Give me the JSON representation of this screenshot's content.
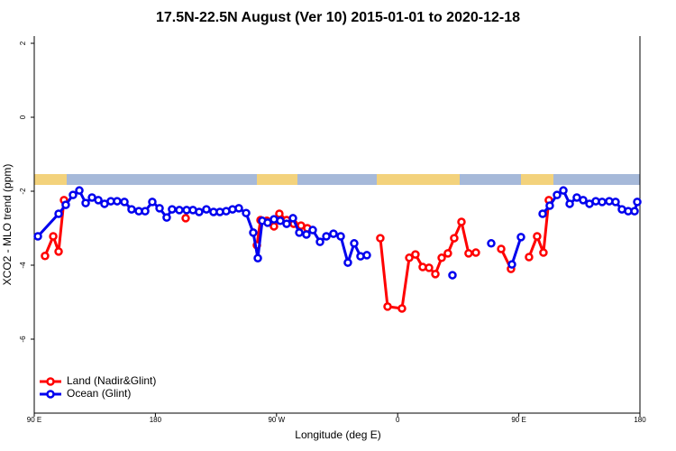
{
  "chart_data": {
    "type": "line",
    "title": "17.5N-22.5N August (Ver 10)   2015-01-01 to 2020-12-18",
    "x_label": "Longitude (deg E)",
    "y_label": "XCO2 - MLO trend (ppm)",
    "xlim": [
      90,
      540
    ],
    "ylim": [
      -8,
      2.2
    ],
    "xticks": [
      {
        "value": 90,
        "label": "90 E"
      },
      180,
      {
        "value": 270,
        "label": "90 W"
      },
      {
        "value": 360,
        "label": "0"
      },
      {
        "value": 450,
        "label": "90 E"
      },
      {
        "value": 540,
        "label": "180"
      }
    ],
    "yticks": [
      2,
      0,
      -2,
      -4,
      -6
    ],
    "legend": "bottom-left",
    "series": [
      {
        "name": "Land (Nadir&Glint)",
        "color": "#ff0000",
        "x": [
          98.0,
          104.1,
          108.1,
          112.1,
          null,
          202.5,
          null,
          255.4,
          258.1,
          262.8,
          268.1,
          272.1,
          277.5,
          282.8,
          288.2,
          292.9,
          null,
          347.1,
          352.5,
          363.2,
          368.6,
          373.2,
          378.6,
          383.3,
          388.0,
          392.7,
          397.3,
          402.0,
          407.4,
          412.7,
          418.1,
          null,
          436.9,
          444.2,
          null,
          457.6,
          463.6,
          468.3,
          472.3
        ],
        "values": [
          -3.75,
          -3.22,
          -3.63,
          -2.24,
          null,
          -2.73,
          null,
          -3.46,
          -2.78,
          -2.8,
          -2.95,
          -2.61,
          -2.78,
          -2.88,
          -2.93,
          -3.0,
          null,
          -3.27,
          -5.12,
          -5.17,
          -3.8,
          -3.71,
          -4.05,
          -4.07,
          -4.24,
          -3.8,
          -3.68,
          -3.27,
          -2.83,
          -3.68,
          -3.66,
          null,
          -3.56,
          -4.1,
          null,
          -3.78,
          -3.22,
          -3.66,
          -2.24
        ]
      },
      {
        "name": "Ocean (Glint)",
        "color": "#0000ee",
        "x": [
          92.7,
          108.1,
          113.4,
          118.8,
          123.5,
          128.2,
          132.9,
          137.6,
          142.2,
          146.9,
          151.6,
          157.0,
          162.3,
          167.7,
          172.4,
          177.7,
          183.1,
          188.4,
          192.4,
          197.8,
          203.2,
          207.9,
          212.5,
          217.9,
          223.2,
          227.9,
          232.6,
          237.3,
          242.0,
          247.4,
          252.7,
          256.1,
          259.4,
          263.4,
          268.1,
          272.8,
          277.5,
          282.2,
          286.9,
          292.2,
          296.9,
          302.3,
          307.0,
          312.3,
          317.7,
          323.0,
          327.7,
          332.4,
          337.1,
          null,
          400.7,
          null,
          429.5,
          null,
          444.9,
          451.6,
          null,
          467.7,
          473.0,
          478.4,
          483.1,
          487.8,
          493.1,
          497.8,
          502.5,
          507.2,
          511.9,
          517.2,
          521.9,
          526.6,
          531.3,
          536.0,
          538.0
        ],
        "values": [
          -3.22,
          -2.61,
          -2.37,
          -2.1,
          -1.98,
          -2.32,
          -2.17,
          -2.24,
          -2.34,
          -2.27,
          -2.27,
          -2.29,
          -2.49,
          -2.54,
          -2.54,
          -2.29,
          -2.46,
          -2.71,
          -2.49,
          -2.51,
          -2.51,
          -2.51,
          -2.56,
          -2.49,
          -2.56,
          -2.56,
          -2.54,
          -2.49,
          -2.46,
          -2.59,
          -3.12,
          -3.81,
          -2.8,
          -2.85,
          -2.76,
          -2.8,
          -2.88,
          -2.73,
          -3.12,
          -3.17,
          -3.05,
          -3.37,
          -3.22,
          -3.15,
          -3.22,
          -3.93,
          -3.41,
          -3.76,
          -3.73,
          null,
          -4.27,
          null,
          -3.41,
          null,
          -3.98,
          -3.24,
          null,
          -2.61,
          -2.39,
          -2.1,
          -1.98,
          -2.34,
          -2.17,
          -2.24,
          -2.34,
          -2.27,
          -2.29,
          -2.27,
          -2.29,
          -2.49,
          -2.54,
          -2.54,
          -2.29
        ]
      }
    ]
  }
}
